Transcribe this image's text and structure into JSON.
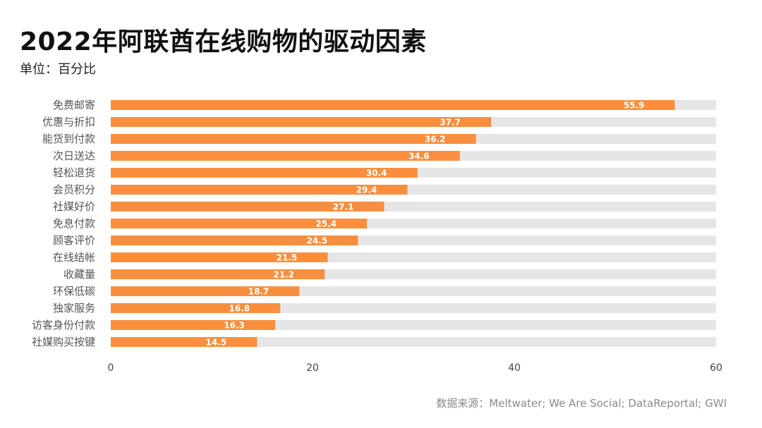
{
  "chart_data": {
    "type": "bar",
    "orientation": "horizontal",
    "title": "2022年阿联酋在线购物的驱动因素",
    "subtitle": "单位：百分比",
    "categories": [
      "免费邮寄",
      "优惠与折扣",
      "能货到付款",
      "次日送达",
      "轻松退货",
      "会员积分",
      "社媒好价",
      "免息付款",
      "顾客评价",
      "在线结帐",
      "收藏量",
      "环保低碳",
      "独家服务",
      "访客身份付款",
      "社媒购买按键"
    ],
    "values": [
      55.9,
      37.7,
      36.2,
      34.6,
      30.4,
      29.4,
      27.1,
      25.4,
      24.5,
      21.5,
      21.2,
      18.7,
      16.8,
      16.3,
      14.5
    ],
    "xlim": [
      0,
      60
    ],
    "xticks": [
      0,
      20,
      40,
      60
    ],
    "bar_color": "#f98f3e",
    "track_color": "#e6e6e6",
    "grid": false,
    "legend": "none",
    "source": "数据来源：Meltwater; We Are Social; DataReportal; GWI"
  }
}
